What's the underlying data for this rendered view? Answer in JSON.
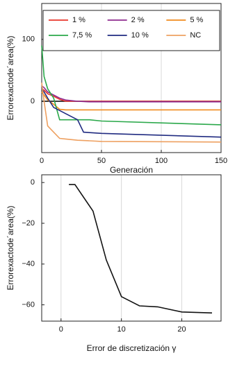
{
  "chart_data": [
    {
      "type": "line",
      "x_label": "Generación",
      "y_label": "Errorexactode´area(%)",
      "xlim": [
        0,
        150
      ],
      "xticks": [
        0,
        50,
        100,
        150
      ],
      "ylim": [
        -83,
        158
      ],
      "yticks": [
        0,
        100
      ],
      "grid": true,
      "legend": "top",
      "series": [
        {
          "name": "1 %",
          "color": "#e8352a",
          "x": [
            0,
            2,
            5,
            10,
            15,
            20,
            30,
            40,
            50,
            150
          ],
          "values": [
            20,
            18,
            12,
            8,
            3,
            0,
            0,
            0,
            0,
            0
          ]
        },
        {
          "name": "2 %",
          "color": "#8e2a8e",
          "x": [
            0,
            2,
            5,
            10,
            15,
            20,
            30,
            40,
            50,
            150
          ],
          "values": [
            25,
            22,
            15,
            10,
            5,
            2,
            0,
            -1,
            -1,
            -1
          ]
        },
        {
          "name": "5 %",
          "color": "#f08a1c",
          "x": [
            0,
            2,
            5,
            10,
            15,
            20,
            30,
            40,
            50,
            150
          ],
          "values": [
            15,
            10,
            2,
            -5,
            -13,
            -14,
            -14,
            -14,
            -14,
            -14
          ]
        },
        {
          "name": "7,5 %",
          "color": "#2aa84a",
          "x": [
            0,
            2,
            5,
            10,
            15,
            20,
            30,
            40,
            50,
            150
          ],
          "values": [
            90,
            40,
            20,
            5,
            -30,
            -30,
            -30,
            -30,
            -32,
            -38
          ]
        },
        {
          "name": "10 %",
          "color": "#1f2a80",
          "x": [
            0,
            2,
            5,
            10,
            15,
            20,
            30,
            35,
            50,
            150
          ],
          "values": [
            20,
            15,
            5,
            -10,
            -15,
            -20,
            -30,
            -50,
            -52,
            -58
          ]
        },
        {
          "name": "NC",
          "color": "#eea060",
          "x": [
            0,
            2,
            5,
            10,
            15,
            20,
            30,
            40,
            50,
            150
          ],
          "values": [
            30,
            0,
            -40,
            -50,
            -60,
            -61,
            -63,
            -64,
            -65,
            -66
          ]
        }
      ]
    },
    {
      "type": "line",
      "x_label": "Error de discretización γ",
      "y_label": "Errorexactode´area(%)",
      "xlim": [
        -3.2,
        26.5
      ],
      "xticks": [
        0,
        10,
        20
      ],
      "ylim": [
        -68,
        3.8
      ],
      "yticks": [
        0,
        {
          "value": -20,
          "label": "−20"
        },
        {
          "value": -40,
          "label": "−40"
        },
        {
          "value": -60,
          "label": "−60"
        }
      ],
      "grid": true,
      "series": [
        {
          "color": "#111111",
          "x": [
            1.3,
            2.3,
            5.3,
            7.5,
            10,
            13,
            16,
            20,
            25
          ],
          "values": [
            -1,
            -1,
            -14,
            -38,
            -56,
            -60.5,
            -61,
            -63.5,
            -64
          ]
        }
      ]
    }
  ]
}
